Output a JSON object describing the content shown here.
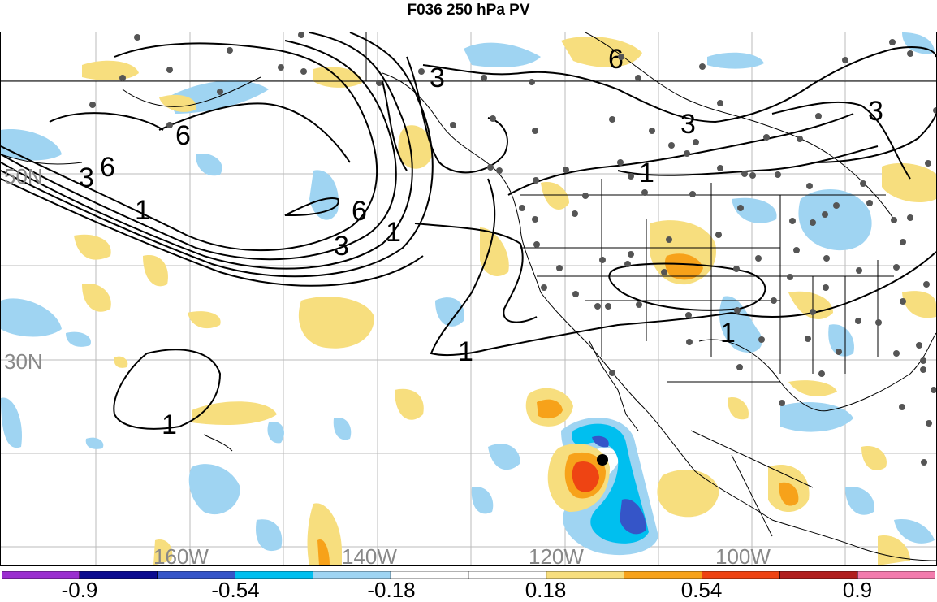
{
  "title": "F036 250 hPa PV",
  "map": {
    "lon_labels": [
      "160W",
      "140W",
      "120W",
      "100W"
    ],
    "lat_labels": [
      "50N",
      "30N"
    ],
    "contour_labels": [
      "6",
      "3",
      "6",
      "3",
      "1",
      "6",
      "3",
      "1",
      "3",
      "6",
      "1",
      "3",
      "1",
      "1",
      "1"
    ]
  },
  "colorbar": {
    "labels": [
      "-0.9",
      "-0.54",
      "-0.18",
      "0.18",
      "0.54",
      "0.9"
    ],
    "colors": [
      "#9a2fcf",
      "#0b0b8f",
      "#3555c8",
      "#00bfef",
      "#9fd4f2",
      "#ffffff",
      "#ffffff",
      "#f7de7e",
      "#f7a21a",
      "#ee4413",
      "#b01e1e",
      "#f27bad"
    ]
  },
  "legend_colors": {
    "contour": "#000000",
    "gridline": "#bbbbbb",
    "station": "#555555",
    "storm_center": "#000000"
  }
}
